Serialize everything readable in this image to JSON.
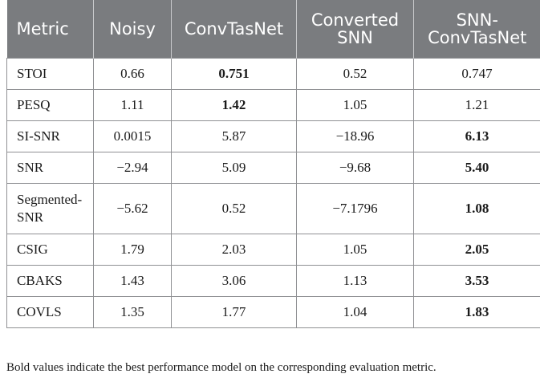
{
  "table": {
    "headers": [
      "Metric",
      "Noisy",
      "ConvTasNet",
      "Converted SNN",
      "SNN-ConvTasNet"
    ],
    "header_lines": [
      [
        "Metric"
      ],
      [
        "Noisy"
      ],
      [
        "ConvTasNet"
      ],
      [
        "Converted",
        "SNN"
      ],
      [
        "SNN-",
        "ConvTasNet"
      ]
    ],
    "rows": [
      {
        "cells": [
          "STOI",
          "0.66",
          "0.751",
          "0.52",
          "0.747"
        ],
        "bold_col": 2
      },
      {
        "cells": [
          "PESQ",
          "1.11",
          "1.42",
          "1.05",
          "1.21"
        ],
        "bold_col": 2
      },
      {
        "cells": [
          "SI-SNR",
          "0.0015",
          "5.87",
          "−18.96",
          "6.13"
        ],
        "bold_col": 4
      },
      {
        "cells": [
          "SNR",
          "−2.94",
          "5.09",
          "−9.68",
          "5.40"
        ],
        "bold_col": 4
      },
      {
        "cells": [
          "Segmented-SNR",
          "−5.62",
          "0.52",
          "−7.1796",
          "1.08"
        ],
        "bold_col": 4,
        "metric_lines": [
          "Segmented-",
          "SNR"
        ]
      },
      {
        "cells": [
          "CSIG",
          "1.79",
          "2.03",
          "1.05",
          "2.05"
        ],
        "bold_col": 4
      },
      {
        "cells": [
          "CBAKS",
          "1.43",
          "3.06",
          "1.13",
          "3.53"
        ],
        "bold_col": 4
      },
      {
        "cells": [
          "COVLS",
          "1.35",
          "1.77",
          "1.04",
          "1.83"
        ],
        "bold_col": 4
      }
    ]
  },
  "footnote": "Bold values indicate the best performance model on the corresponding evaluation metric.",
  "colors": {
    "header_bg": "#7a7c7f",
    "header_text": "#ffffff",
    "border": "#8f9093"
  }
}
